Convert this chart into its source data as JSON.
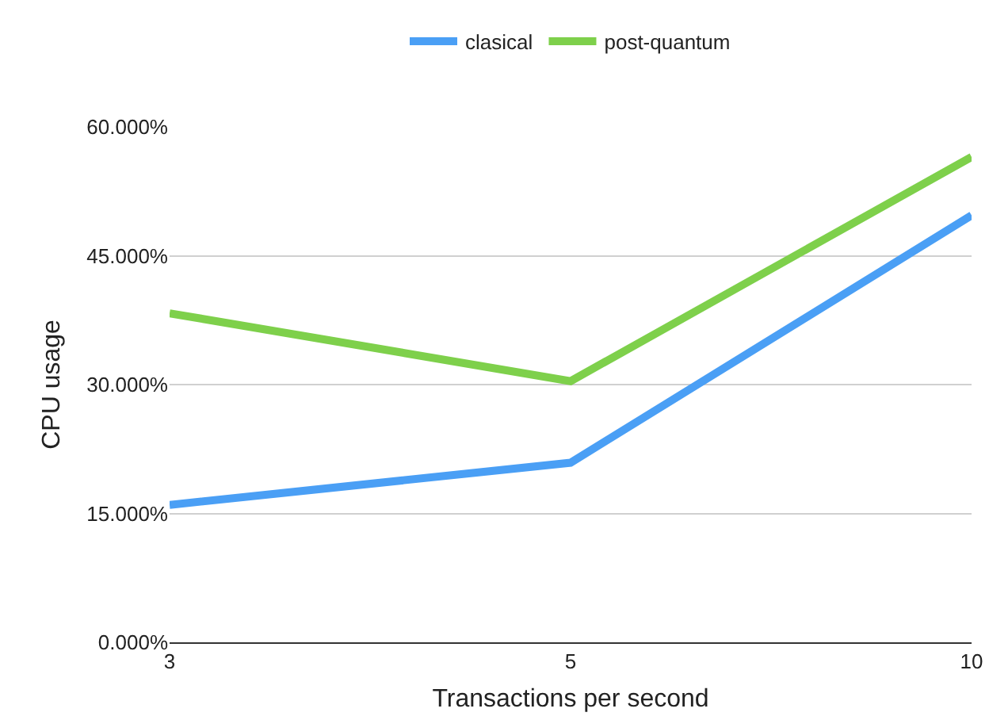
{
  "chart_data": {
    "type": "line",
    "xlabel": "Transactions per second",
    "ylabel": "CPU usage",
    "categories": [
      "3",
      "5",
      "10"
    ],
    "series": [
      {
        "name": "clasical",
        "color": "#4a9ff5",
        "values": [
          16.0,
          20.9,
          49.7
        ]
      },
      {
        "name": "post-quantum",
        "color": "#7ed04b",
        "values": [
          38.3,
          30.4,
          56.5
        ]
      }
    ],
    "ylim": [
      0,
      60
    ],
    "yticks": [
      {
        "value": 0,
        "label": "0.000%"
      },
      {
        "value": 15,
        "label": "15.000%"
      },
      {
        "value": 30,
        "label": "30.000%"
      },
      {
        "value": 45,
        "label": "45.000%"
      },
      {
        "value": 60,
        "label": "60.000%"
      }
    ],
    "grid": "y",
    "legend": "top",
    "marker": "none",
    "line_style": "solid"
  }
}
